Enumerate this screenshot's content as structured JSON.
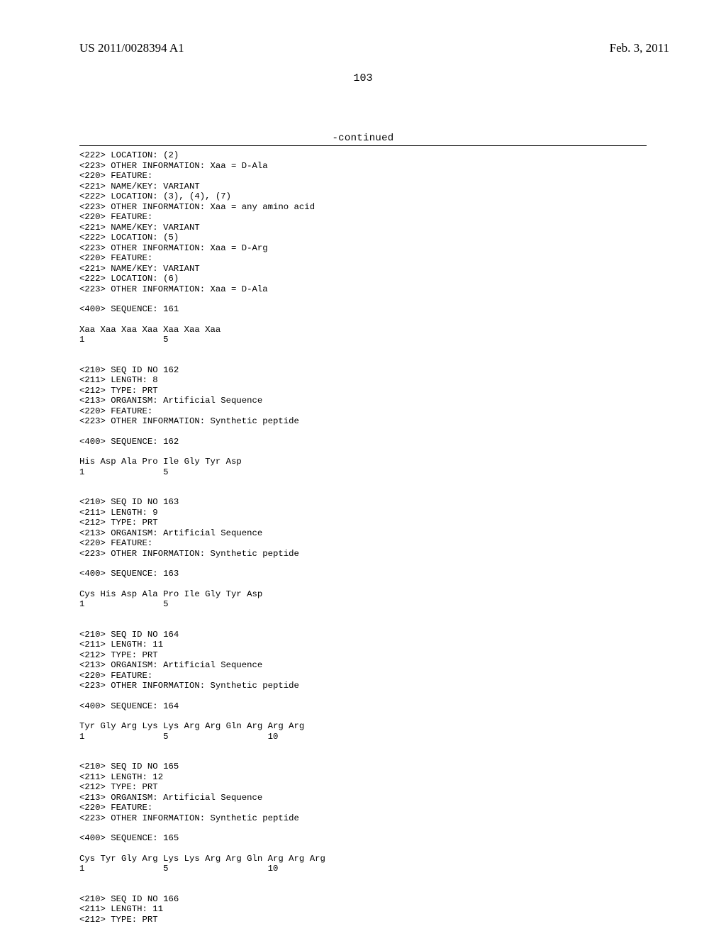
{
  "header": {
    "publication_number": "US 2011/0028394 A1",
    "publication_date": "Feb. 3, 2011"
  },
  "page_number": "103",
  "continued_label": "-continued",
  "listing": {
    "font_family": "Courier New",
    "font_size_pt": 9,
    "line_height_ratio": 1.18,
    "text_color": "#000000",
    "background_color": "#ffffff",
    "rule_color": "#000000",
    "blocks": [
      {
        "lines": [
          "<222> LOCATION: (2)",
          "<223> OTHER INFORMATION: Xaa = D-Ala",
          "<220> FEATURE:",
          "<221> NAME/KEY: VARIANT",
          "<222> LOCATION: (3), (4), (7)",
          "<223> OTHER INFORMATION: Xaa = any amino acid",
          "<220> FEATURE:",
          "<221> NAME/KEY: VARIANT",
          "<222> LOCATION: (5)",
          "<223> OTHER INFORMATION: Xaa = D-Arg",
          "<220> FEATURE:",
          "<221> NAME/KEY: VARIANT",
          "<222> LOCATION: (6)",
          "<223> OTHER INFORMATION: Xaa = D-Ala"
        ]
      },
      {
        "blank": 1
      },
      {
        "lines": [
          "<400> SEQUENCE: 161"
        ]
      },
      {
        "blank": 1
      },
      {
        "lines": [
          "Xaa Xaa Xaa Xaa Xaa Xaa Xaa",
          "1               5"
        ]
      },
      {
        "blank": 2
      },
      {
        "lines": [
          "<210> SEQ ID NO 162",
          "<211> LENGTH: 8",
          "<212> TYPE: PRT",
          "<213> ORGANISM: Artificial Sequence",
          "<220> FEATURE:",
          "<223> OTHER INFORMATION: Synthetic peptide"
        ]
      },
      {
        "blank": 1
      },
      {
        "lines": [
          "<400> SEQUENCE: 162"
        ]
      },
      {
        "blank": 1
      },
      {
        "lines": [
          "His Asp Ala Pro Ile Gly Tyr Asp",
          "1               5"
        ]
      },
      {
        "blank": 2
      },
      {
        "lines": [
          "<210> SEQ ID NO 163",
          "<211> LENGTH: 9",
          "<212> TYPE: PRT",
          "<213> ORGANISM: Artificial Sequence",
          "<220> FEATURE:",
          "<223> OTHER INFORMATION: Synthetic peptide"
        ]
      },
      {
        "blank": 1
      },
      {
        "lines": [
          "<400> SEQUENCE: 163"
        ]
      },
      {
        "blank": 1
      },
      {
        "lines": [
          "Cys His Asp Ala Pro Ile Gly Tyr Asp",
          "1               5"
        ]
      },
      {
        "blank": 2
      },
      {
        "lines": [
          "<210> SEQ ID NO 164",
          "<211> LENGTH: 11",
          "<212> TYPE: PRT",
          "<213> ORGANISM: Artificial Sequence",
          "<220> FEATURE:",
          "<223> OTHER INFORMATION: Synthetic peptide"
        ]
      },
      {
        "blank": 1
      },
      {
        "lines": [
          "<400> SEQUENCE: 164"
        ]
      },
      {
        "blank": 1
      },
      {
        "lines": [
          "Tyr Gly Arg Lys Lys Arg Arg Gln Arg Arg Arg",
          "1               5                   10"
        ]
      },
      {
        "blank": 2
      },
      {
        "lines": [
          "<210> SEQ ID NO 165",
          "<211> LENGTH: 12",
          "<212> TYPE: PRT",
          "<213> ORGANISM: Artificial Sequence",
          "<220> FEATURE:",
          "<223> OTHER INFORMATION: Synthetic peptide"
        ]
      },
      {
        "blank": 1
      },
      {
        "lines": [
          "<400> SEQUENCE: 165"
        ]
      },
      {
        "blank": 1
      },
      {
        "lines": [
          "Cys Tyr Gly Arg Lys Lys Arg Arg Gln Arg Arg Arg",
          "1               5                   10"
        ]
      },
      {
        "blank": 2
      },
      {
        "lines": [
          "<210> SEQ ID NO 166",
          "<211> LENGTH: 11",
          "<212> TYPE: PRT"
        ]
      }
    ]
  }
}
